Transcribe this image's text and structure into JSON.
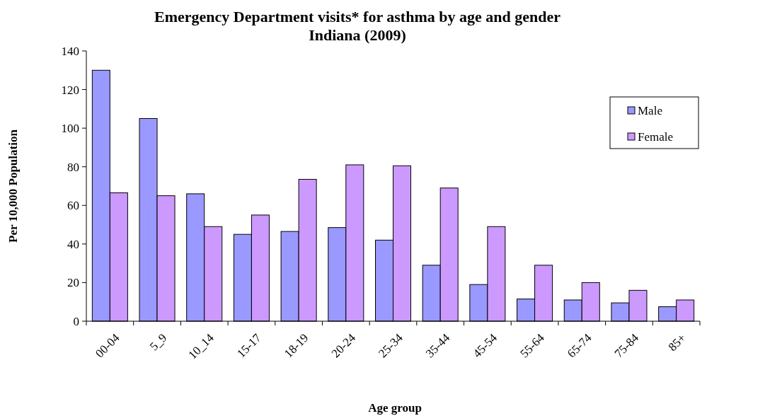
{
  "chart_data": {
    "type": "bar",
    "title": "Emergency Department visits* for asthma by age and gender\nIndiana (2009)",
    "xlabel": "Age group",
    "ylabel": "Per 10,000 Population",
    "categories": [
      "00-04",
      "5_9",
      "10_14",
      "15-17",
      "18-19",
      "20-24",
      "25-34",
      "35-44",
      "45-54",
      "55-64",
      "65-74",
      "75-84",
      "85+"
    ],
    "series": [
      {
        "name": "Male",
        "color": "#9999ff",
        "values": [
          130,
          105,
          66,
          45,
          46.5,
          48.5,
          42,
          29,
          19,
          11.5,
          11,
          9.5,
          7.5
        ]
      },
      {
        "name": "Female",
        "color": "#cc99ff",
        "values": [
          66.5,
          65,
          49,
          55,
          73.5,
          81,
          80.5,
          69,
          49,
          29,
          20,
          16,
          11
        ]
      }
    ],
    "ylim": [
      0,
      140
    ],
    "yticks": [
      0,
      20,
      40,
      60,
      80,
      100,
      120,
      140
    ],
    "grid": false,
    "legend": "top right"
  }
}
